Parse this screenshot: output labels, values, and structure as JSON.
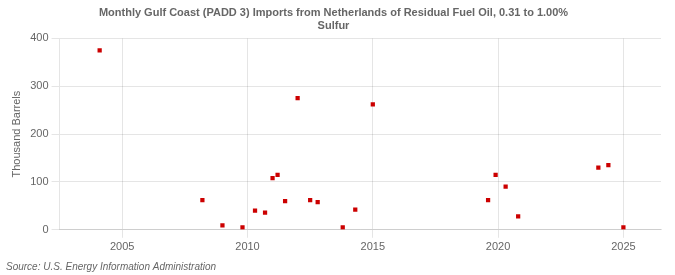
{
  "chart_data": {
    "type": "scatter",
    "title": "Monthly Gulf Coast (PADD 3) Imports from Netherlands of Residual Fuel Oil, 0.31 to 1.00%\nSulfur",
    "ylabel": "Thousand Barrels",
    "source": "Source: U.S. Energy Information Administration",
    "color": "#cc0000",
    "marker": "square",
    "grid": true,
    "xlim": [
      2002.5,
      2026.5
    ],
    "xticks": [
      2005,
      2010,
      2015,
      2020,
      2025
    ],
    "ylim": [
      0,
      400
    ],
    "yticks": [
      0,
      100,
      200,
      300,
      400
    ],
    "x": [
      2004.1,
      2008.2,
      2009.0,
      2009.8,
      2010.3,
      2010.7,
      2011.0,
      2011.2,
      2011.5,
      2012.0,
      2012.5,
      2012.8,
      2013.8,
      2014.3,
      2015.0,
      2019.6,
      2019.9,
      2020.3,
      2020.8,
      2024.0,
      2024.4,
      2025.0
    ],
    "values": [
      375,
      62,
      9,
      5,
      40,
      36,
      108,
      115,
      60,
      275,
      62,
      58,
      5,
      42,
      262,
      62,
      115,
      90,
      28,
      130,
      135,
      5
    ]
  }
}
